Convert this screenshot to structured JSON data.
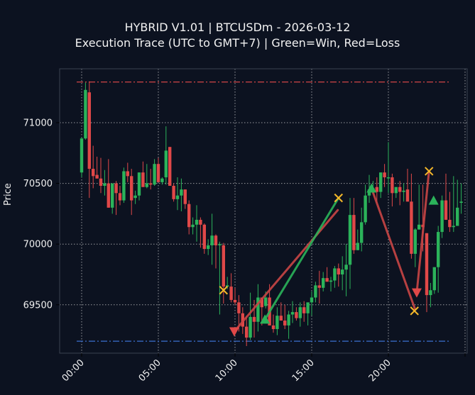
{
  "header": {
    "title_line1": "HYBRID V1.01 | BTCUSDm - 2026-03-12",
    "title_line2": "Execution Trace (UTC to GMT+7) | Green=Win, Red=Loss"
  },
  "colors": {
    "background": "#0c1220",
    "up": "#2bb35a",
    "down": "#e04848",
    "grid": "#c8c8c8",
    "frame": "#3a4150",
    "resistance": "#d04545",
    "support": "#3a6fd0",
    "exit_marker": "#f5b82a"
  },
  "chart_data": {
    "type": "candlestick",
    "title": "HYBRID V1.01 | BTCUSDm - 2026-03-12\nExecution Trace (UTC to GMT+7) | Green=Win, Red=Loss",
    "xlabel": "",
    "ylabel": "Price",
    "x_ticks": [
      "00:00",
      "05:00",
      "10:00",
      "15:00",
      "20:00"
    ],
    "y_ticks": [
      69500,
      70000,
      70500,
      71000
    ],
    "ylim": [
      69120,
      71440
    ],
    "xlim_hours": [
      -1.4,
      25.2
    ],
    "grid": true,
    "interval_minutes": 15,
    "candles_ohlc": [
      [
        70590,
        70880,
        70550,
        70870
      ],
      [
        70870,
        71330,
        70860,
        71270
      ],
      [
        71250,
        71340,
        70380,
        70620
      ],
      [
        70620,
        70810,
        70460,
        70560
      ],
      [
        70570,
        70720,
        70550,
        70540
      ],
      [
        70540,
        70710,
        70420,
        70480
      ],
      [
        70480,
        70610,
        70400,
        70500
      ],
      [
        70500,
        70700,
        70370,
        70300
      ],
      [
        70300,
        70450,
        70250,
        70500
      ],
      [
        70500,
        70520,
        70240,
        70420
      ],
      [
        70420,
        70480,
        70320,
        70360
      ],
      [
        70360,
        70630,
        70340,
        70600
      ],
      [
        70600,
        70670,
        70510,
        70560
      ],
      [
        70560,
        70620,
        70240,
        70360
      ],
      [
        70380,
        70440,
        70330,
        70400
      ],
      [
        70400,
        70580,
        70360,
        70590
      ],
      [
        70590,
        70680,
        70480,
        70470
      ],
      [
        70470,
        70660,
        70460,
        70500
      ],
      [
        70500,
        70620,
        70450,
        70490
      ],
      [
        70490,
        70700,
        70480,
        70660
      ],
      [
        70660,
        70710,
        70530,
        70510
      ],
      [
        70510,
        70550,
        70490,
        70540
      ],
      [
        70550,
        70970,
        70490,
        70770
      ],
      [
        70800,
        70800,
        70480,
        70480
      ],
      [
        70480,
        70500,
        70350,
        70370
      ],
      [
        70370,
        70550,
        70280,
        70400
      ],
      [
        70400,
        70540,
        70270,
        70450
      ],
      [
        70450,
        70450,
        70290,
        70330
      ],
      [
        70330,
        70360,
        70080,
        70140
      ],
      [
        70140,
        70220,
        70080,
        70160
      ],
      [
        70160,
        70320,
        70020,
        70200
      ],
      [
        70200,
        70220,
        69970,
        70160
      ],
      [
        70160,
        70170,
        69920,
        69960
      ],
      [
        69960,
        70040,
        69910,
        69990
      ],
      [
        69990,
        70250,
        69830,
        70070
      ],
      [
        70070,
        70080,
        69800,
        69990
      ],
      [
        69990,
        70020,
        69420,
        70000
      ],
      [
        69990,
        70010,
        69510,
        69650
      ],
      [
        69650,
        69730,
        69630,
        69660
      ],
      [
        69650,
        69760,
        69520,
        69540
      ],
      [
        69540,
        69640,
        69500,
        69520
      ],
      [
        69520,
        69580,
        69280,
        69430
      ],
      [
        69430,
        69480,
        69260,
        69320
      ],
      [
        69320,
        69410,
        69160,
        69230
      ],
      [
        69230,
        69600,
        69210,
        69400
      ],
      [
        69400,
        69540,
        69230,
        69360
      ],
      [
        69360,
        69670,
        69280,
        69560
      ],
      [
        69560,
        69560,
        69330,
        69480
      ],
      [
        69490,
        69610,
        69470,
        69560
      ],
      [
        69560,
        69670,
        69380,
        69330
      ],
      [
        69330,
        69420,
        69270,
        69300
      ],
      [
        69300,
        69480,
        69250,
        69410
      ],
      [
        69410,
        69520,
        69370,
        69370
      ],
      [
        69370,
        69500,
        69300,
        69330
      ],
      [
        69330,
        69450,
        69220,
        69420
      ],
      [
        69420,
        69530,
        69350,
        69440
      ],
      [
        69440,
        69480,
        69370,
        69390
      ],
      [
        69390,
        69520,
        69320,
        69480
      ],
      [
        69480,
        69530,
        69360,
        69430
      ],
      [
        69430,
        69520,
        69330,
        69520
      ],
      [
        69520,
        69610,
        69410,
        69560
      ],
      [
        69560,
        69690,
        69520,
        69660
      ],
      [
        69660,
        69780,
        69510,
        69640
      ],
      [
        69640,
        69770,
        69610,
        69720
      ],
      [
        69720,
        69810,
        69690,
        69690
      ],
      [
        69690,
        69730,
        69610,
        69700
      ],
      [
        69700,
        69820,
        69640,
        69800
      ],
      [
        69800,
        69840,
        69650,
        69750
      ],
      [
        69750,
        69900,
        69620,
        69790
      ],
      [
        69790,
        70000,
        69570,
        69830
      ],
      [
        69830,
        70380,
        69630,
        70240
      ],
      [
        70240,
        70380,
        69920,
        69950
      ],
      [
        69950,
        70120,
        69960,
        70010
      ],
      [
        70010,
        70300,
        69940,
        70180
      ],
      [
        70180,
        70490,
        70160,
        70400
      ],
      [
        70400,
        70570,
        70340,
        70450
      ],
      [
        70450,
        70520,
        70410,
        70460
      ],
      [
        70470,
        70550,
        70340,
        70430
      ],
      [
        70430,
        70580,
        70380,
        70590
      ],
      [
        70590,
        70660,
        70470,
        70550
      ],
      [
        70550,
        70840,
        70420,
        70550
      ],
      [
        70550,
        70580,
        70310,
        70420
      ],
      [
        70420,
        70460,
        70380,
        70470
      ],
      [
        70470,
        70520,
        70320,
        70430
      ],
      [
        70430,
        70500,
        70350,
        70440
      ],
      [
        70450,
        70620,
        70470,
        70350
      ],
      [
        70350,
        70580,
        69880,
        69920
      ],
      [
        69920,
        70130,
        69810,
        70120
      ],
      [
        70120,
        70490,
        70330,
        70160
      ],
      [
        70160,
        70490,
        69940,
        70140
      ],
      [
        70090,
        70040,
        69440,
        69580
      ],
      [
        69580,
        69680,
        69480,
        69620
      ],
      [
        69620,
        69700,
        69590,
        69810
      ],
      [
        69810,
        70150,
        69600,
        70100
      ],
      [
        70100,
        70400,
        70050,
        70360
      ],
      [
        70360,
        70580,
        70300,
        70200
      ],
      [
        70200,
        70430,
        70100,
        70140
      ],
      [
        70140,
        70560,
        70100,
        70150
      ],
      [
        70150,
        70530,
        70310,
        70300
      ],
      [
        70340,
        70500,
        70250,
        70350
      ]
    ],
    "reference_lines": [
      {
        "name": "resistance",
        "price": 71335,
        "style": "dash-dot",
        "color": "#d04545"
      },
      {
        "name": "support",
        "price": 69200,
        "style": "dash-dot",
        "color": "#3a6fd0"
      }
    ],
    "trades": [
      {
        "direction": "short",
        "result": "loss",
        "entry_hour": 9.25,
        "entry_price": 69610,
        "exit_hour": 9.95,
        "exit_price": 69280,
        "note": "entry X then exit marker"
      },
      {
        "direction": "long",
        "result": "loss",
        "entry_hour": 9.95,
        "entry_price": 69280,
        "exit_hour": 16.7,
        "exit_price": 70270
      },
      {
        "direction": "long",
        "result": "win",
        "entry_hour": 11.95,
        "entry_price": 69380,
        "exit_hour": 16.75,
        "exit_price": 70380
      },
      {
        "direction": "long",
        "result": "loss",
        "entry_hour": 18.9,
        "entry_price": 70460,
        "exit_hour": 21.7,
        "exit_price": 69460
      },
      {
        "direction": "short",
        "result": "loss",
        "entry_hour": 21.85,
        "entry_price": 69600,
        "exit_hour": 22.65,
        "exit_price": 70600
      },
      {
        "direction": "long",
        "result": "win",
        "entry_hour": 22.9,
        "entry_price": 70360,
        "exit_hour": null,
        "exit_price": null
      }
    ],
    "markers": [
      {
        "type": "exit-x",
        "hour": 9.25,
        "price": 69620
      },
      {
        "type": "sell-triangle",
        "hour": 9.95,
        "price": 69280
      },
      {
        "type": "buy-triangle",
        "hour": 11.95,
        "price": 69380
      },
      {
        "type": "exit-x",
        "hour": 16.75,
        "price": 70380
      },
      {
        "type": "buy-triangle",
        "hour": 18.9,
        "price": 70460
      },
      {
        "type": "exit-x",
        "hour": 21.7,
        "price": 69450
      },
      {
        "type": "sell-triangle",
        "hour": 21.85,
        "price": 69600
      },
      {
        "type": "exit-x",
        "hour": 22.65,
        "price": 70600
      },
      {
        "type": "buy-triangle",
        "hour": 22.95,
        "price": 70360
      }
    ],
    "trace_lines": [
      {
        "color": "#c94545",
        "from": [
          9.95,
          69280
        ],
        "to": [
          16.7,
          70280
        ]
      },
      {
        "color": "#2bb35a",
        "from": [
          11.95,
          69380
        ],
        "to": [
          16.75,
          70380
        ]
      },
      {
        "color": "#c94545",
        "from": [
          18.9,
          70460
        ],
        "to": [
          21.75,
          69460
        ]
      },
      {
        "color": "#c94545",
        "from": [
          21.85,
          69600
        ],
        "to": [
          22.65,
          70600
        ]
      }
    ]
  }
}
